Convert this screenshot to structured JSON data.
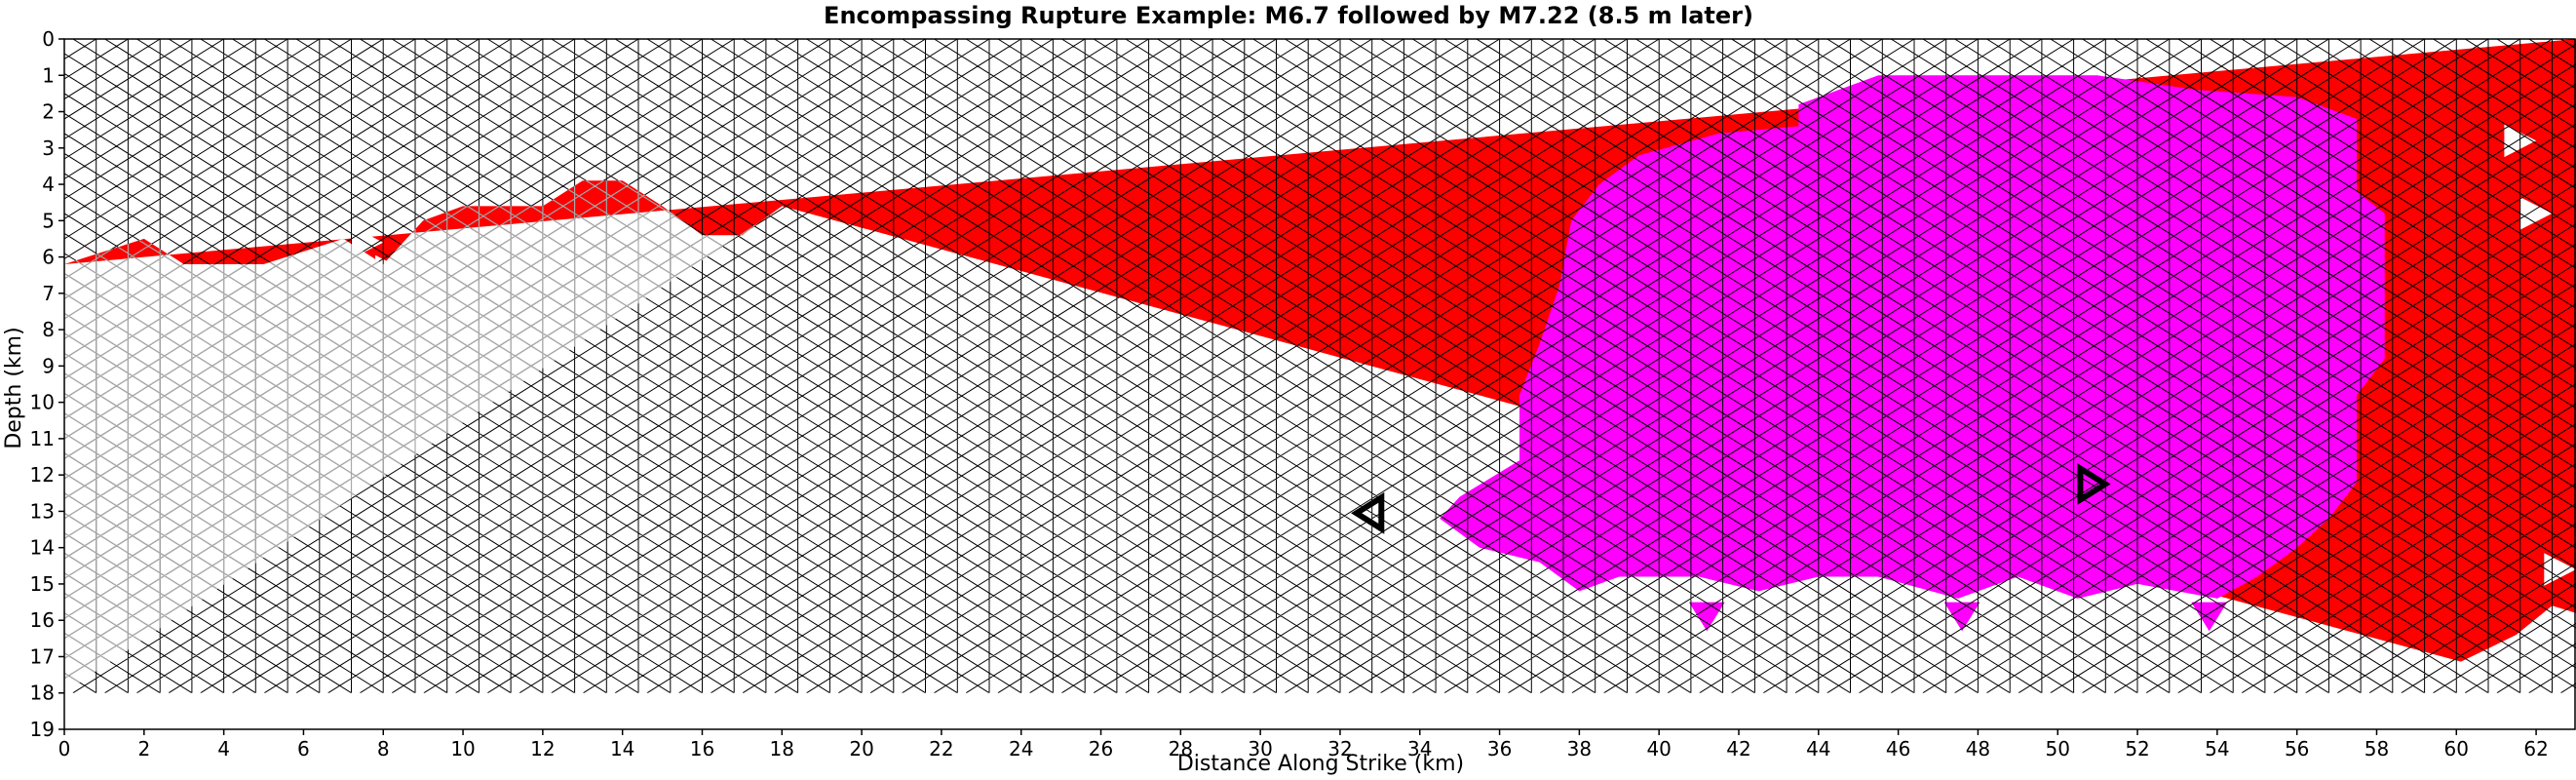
{
  "chart_data": {
    "type": "heatmap",
    "title": "Encompassing Rupture Example: M6.7 followed by M7.22 (8.5 m later)",
    "xlabel": "Distance Along Strike (km)",
    "ylabel": "Depth (km)",
    "xlim": [
      0,
      63
    ],
    "ylim": [
      19,
      0
    ],
    "xticks": [
      "0",
      "2",
      "4",
      "6",
      "8",
      "10",
      "12",
      "14",
      "16",
      "18",
      "20",
      "22",
      "24",
      "26",
      "28",
      "30",
      "32",
      "34",
      "36",
      "38",
      "40",
      "42",
      "44",
      "46",
      "48",
      "50",
      "52",
      "54",
      "56",
      "58",
      "60",
      "62"
    ],
    "yticks": [
      "0",
      "1",
      "2",
      "3",
      "4",
      "5",
      "6",
      "7",
      "8",
      "9",
      "10",
      "11",
      "12",
      "13",
      "14",
      "15",
      "16",
      "17",
      "18",
      "19"
    ],
    "grid": "triangular fault mesh",
    "mesh_bottom_depth_km": 18,
    "colors": {
      "first_event_M6.7": "#ff00ff",
      "second_event_M7.22": "#ff0000",
      "unruptured": "#ffffff",
      "mesh_line": "#000000",
      "unruptured_mesh_line": "#aaaaaa"
    },
    "red_rupture_x_edge_by_depth_km": [
      [
        0,
        6.2
      ],
      [
        2,
        5.5
      ],
      [
        3,
        6.2
      ],
      [
        5,
        6.2
      ],
      [
        7,
        5.5
      ],
      [
        8,
        6.2
      ],
      [
        9,
        5.0
      ],
      [
        10,
        4.6
      ],
      [
        12,
        4.6
      ],
      [
        13,
        3.9
      ],
      [
        14,
        3.9
      ],
      [
        15,
        4.6
      ],
      [
        16,
        5.4
      ],
      [
        17,
        5.4
      ],
      [
        18,
        4.6
      ]
    ],
    "magenta_rupture_polygon_km": [
      [
        43.5,
        1.8
      ],
      [
        45.5,
        1.0
      ],
      [
        48.5,
        1.0
      ],
      [
        51.0,
        1.0
      ],
      [
        53.5,
        1.4
      ],
      [
        56.0,
        1.6
      ],
      [
        57.5,
        2.2
      ],
      [
        57.5,
        4.2
      ],
      [
        58.2,
        4.8
      ],
      [
        58.2,
        5.8
      ],
      [
        58.2,
        7.0
      ],
      [
        58.2,
        8.8
      ],
      [
        57.5,
        9.8
      ],
      [
        57.5,
        12.2
      ],
      [
        56.8,
        13.2
      ],
      [
        56.0,
        14.0
      ],
      [
        55.0,
        14.8
      ],
      [
        54.0,
        15.4
      ],
      [
        52.0,
        15.0
      ],
      [
        50.5,
        15.4
      ],
      [
        49.0,
        14.8
      ],
      [
        47.5,
        15.4
      ],
      [
        45.5,
        14.8
      ],
      [
        44.0,
        14.8
      ],
      [
        42.5,
        15.2
      ],
      [
        41.0,
        14.8
      ],
      [
        39.0,
        14.8
      ],
      [
        38.0,
        15.2
      ],
      [
        37.0,
        14.4
      ],
      [
        35.5,
        14.0
      ],
      [
        34.5,
        13.2
      ],
      [
        35.0,
        12.6
      ],
      [
        36.5,
        11.6
      ],
      [
        36.5,
        9.8
      ],
      [
        37.0,
        8.4
      ],
      [
        37.5,
        6.8
      ],
      [
        37.8,
        5.0
      ],
      [
        38.5,
        4.0
      ],
      [
        39.5,
        3.2
      ],
      [
        41.5,
        2.6
      ],
      [
        43.5,
        2.4
      ]
    ],
    "magenta_patches_km": [
      {
        "x": 41.2,
        "depth": 15.9
      },
      {
        "x": 47.6,
        "depth": 15.9
      },
      {
        "x": 53.8,
        "depth": 15.9
      }
    ],
    "white_gaps_in_red_km": [
      {
        "x": 8.2,
        "depth": 2.6
      },
      {
        "x": 7.6,
        "depth": 4.2
      },
      {
        "x": 8.2,
        "depth": 4.8
      },
      {
        "x": 7.6,
        "depth": 5.6
      },
      {
        "x": 8.2,
        "depth": 6.4
      },
      {
        "x": 7.2,
        "depth": 7.4
      },
      {
        "x": 8.2,
        "depth": 8.0
      },
      {
        "x": 7.6,
        "depth": 8.6
      },
      {
        "x": 7.6,
        "depth": 9.6
      },
      {
        "x": 8.2,
        "depth": 10.2
      },
      {
        "x": 7.6,
        "depth": 11.2
      },
      {
        "x": 8.2,
        "depth": 11.8
      },
      {
        "x": 7.6,
        "depth": 12.4
      },
      {
        "x": 61.6,
        "depth": 2.8
      },
      {
        "x": 62.0,
        "depth": 4.8
      },
      {
        "x": 62.6,
        "depth": 14.6
      },
      {
        "x": 48.8,
        "depth": 18.0
      }
    ],
    "white_corner_region_km": [
      [
        58.2,
        18
      ],
      [
        58.2,
        17.4
      ],
      [
        60.0,
        17.2
      ],
      [
        61.5,
        16.4
      ],
      [
        62.4,
        15.6
      ],
      [
        63.0,
        15.8
      ],
      [
        63.0,
        18
      ]
    ],
    "hypocenters": [
      {
        "x": 32.8,
        "depth": 13.05,
        "direction": "left"
      },
      {
        "x": 50.8,
        "depth": 12.25,
        "direction": "right"
      }
    ]
  }
}
